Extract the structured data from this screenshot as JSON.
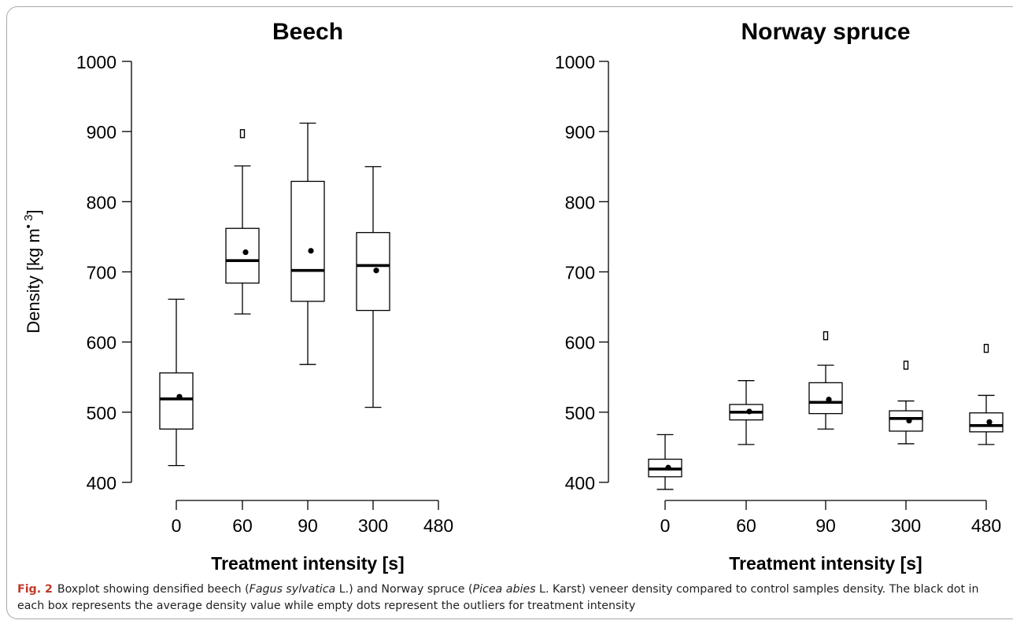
{
  "chart_data": [
    {
      "type": "box",
      "title": "Beech",
      "xlabel": "Treatment intensity [s]",
      "ylabel": "Density [kg m",
      "ylabel_sup": "• 3",
      "ylabel_end": "]",
      "ylim": [
        400,
        1000
      ],
      "yticks": [
        "400",
        "500",
        "600",
        "700",
        "800",
        "900",
        "1000"
      ],
      "categories": [
        "0",
        "60",
        "90",
        "300",
        "480"
      ],
      "boxes": [
        {
          "category": "0",
          "whisker_low": 424,
          "q1": 476,
          "median": 519,
          "q3": 556,
          "whisker_high": 661,
          "mean": 522,
          "outliers": []
        },
        {
          "category": "60",
          "whisker_low": 640,
          "q1": 684,
          "median": 716,
          "q3": 762,
          "whisker_high": 851,
          "mean": 728,
          "outliers": [
            897
          ]
        },
        {
          "category": "90",
          "whisker_low": 568,
          "q1": 658,
          "median": 702,
          "q3": 829,
          "whisker_high": 912,
          "mean": 730,
          "outliers": []
        },
        {
          "category": "300",
          "whisker_low": 507,
          "q1": 645,
          "median": 709,
          "q3": 756,
          "whisker_high": 850,
          "mean": 702,
          "outliers": []
        }
      ]
    },
    {
      "type": "box",
      "title": "Norway spruce",
      "xlabel": "Treatment intensity [s]",
      "ylabel": "",
      "ylim": [
        400,
        1000
      ],
      "yticks": [
        "400",
        "500",
        "600",
        "700",
        "800",
        "900",
        "1000"
      ],
      "categories": [
        "0",
        "60",
        "90",
        "300",
        "480"
      ],
      "boxes": [
        {
          "category": "0",
          "whisker_low": 390,
          "q1": 408,
          "median": 419,
          "q3": 433,
          "whisker_high": 468,
          "mean": 421,
          "outliers": []
        },
        {
          "category": "60",
          "whisker_low": 454,
          "q1": 489,
          "median": 500,
          "q3": 511,
          "whisker_high": 545,
          "mean": 501,
          "outliers": []
        },
        {
          "category": "90",
          "whisker_low": 476,
          "q1": 498,
          "median": 514,
          "q3": 542,
          "whisker_high": 567,
          "mean": 518,
          "outliers": [
            609
          ]
        },
        {
          "category": "300",
          "whisker_low": 455,
          "q1": 473,
          "median": 491,
          "q3": 502,
          "whisker_high": 516,
          "mean": 488,
          "outliers": [
            567
          ]
        },
        {
          "category": "480",
          "whisker_low": 454,
          "q1": 472,
          "median": 481,
          "q3": 499,
          "whisker_high": 524,
          "mean": 486,
          "outliers": [
            591
          ]
        }
      ]
    }
  ],
  "caption": {
    "label": "Fig. 2",
    "parts": [
      {
        "t": "Boxplot showing densified beech (",
        "i": false
      },
      {
        "t": "Fagus sylvatica",
        "i": true
      },
      {
        "t": " L.) and Norway spruce (",
        "i": false
      },
      {
        "t": "Picea abies",
        "i": true
      },
      {
        "t": " L. Karst) veneer density compared to control samples density. The black dot in each box represents the average density value while empty dots represent the outliers for treatment intensity",
        "i": false
      }
    ]
  }
}
